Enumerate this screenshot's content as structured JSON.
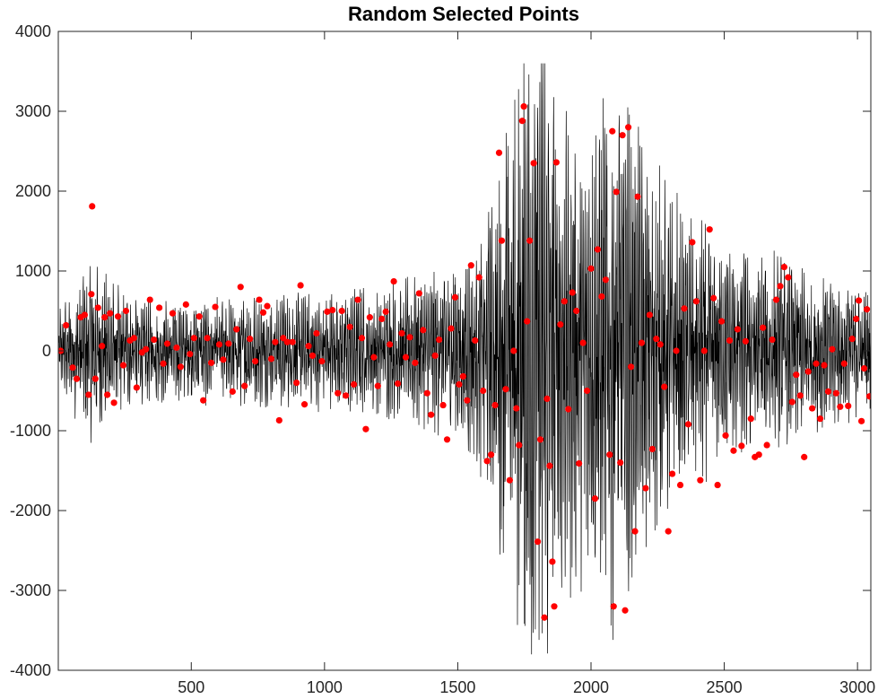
{
  "chart_data": {
    "type": "line",
    "title": "Random Selected Points",
    "xlabel": "",
    "ylabel": "",
    "xlim": [
      1,
      3050
    ],
    "ylim": [
      -4000,
      4000
    ],
    "x_ticks": [
      500,
      1000,
      1500,
      2000,
      2500,
      3000
    ],
    "y_ticks": [
      4000,
      3000,
      2000,
      1000,
      0,
      -1000,
      -2000,
      -3000,
      -4000
    ],
    "grid": false,
    "legend": "none",
    "series": [
      {
        "kind": "line",
        "color": "#000000",
        "n_samples": 3050,
        "envelope": [
          {
            "x": 1,
            "amp": 450
          },
          {
            "x": 120,
            "amp": 900
          },
          {
            "x": 300,
            "amp": 520
          },
          {
            "x": 800,
            "amp": 560
          },
          {
            "x": 1200,
            "amp": 650
          },
          {
            "x": 1450,
            "amp": 850
          },
          {
            "x": 1600,
            "amp": 1300
          },
          {
            "x": 1700,
            "amp": 2600
          },
          {
            "x": 1760,
            "amp": 3500
          },
          {
            "x": 1830,
            "amp": 3600
          },
          {
            "x": 1900,
            "amp": 2500
          },
          {
            "x": 2000,
            "amp": 2300
          },
          {
            "x": 2100,
            "amp": 3000
          },
          {
            "x": 2200,
            "amp": 2000
          },
          {
            "x": 2350,
            "amp": 1500
          },
          {
            "x": 2500,
            "amp": 1100
          },
          {
            "x": 2700,
            "amp": 1000
          },
          {
            "x": 2900,
            "amp": 800
          },
          {
            "x": 3050,
            "amp": 600
          }
        ]
      },
      {
        "kind": "scatter",
        "color": "#ff0000",
        "points": [
          [
            10,
            0
          ],
          [
            30,
            320
          ],
          [
            55,
            -210
          ],
          [
            70,
            -350
          ],
          [
            85,
            420
          ],
          [
            100,
            450
          ],
          [
            115,
            -550
          ],
          [
            125,
            710
          ],
          [
            128,
            1810
          ],
          [
            140,
            -350
          ],
          [
            150,
            540
          ],
          [
            165,
            60
          ],
          [
            175,
            420
          ],
          [
            185,
            -550
          ],
          [
            195,
            470
          ],
          [
            210,
            -650
          ],
          [
            225,
            430
          ],
          [
            245,
            -180
          ],
          [
            255,
            500
          ],
          [
            270,
            130
          ],
          [
            285,
            160
          ],
          [
            295,
            -460
          ],
          [
            315,
            -20
          ],
          [
            330,
            20
          ],
          [
            345,
            640
          ],
          [
            360,
            140
          ],
          [
            380,
            540
          ],
          [
            395,
            -160
          ],
          [
            410,
            90
          ],
          [
            430,
            470
          ],
          [
            445,
            40
          ],
          [
            460,
            -200
          ],
          [
            480,
            580
          ],
          [
            495,
            -40
          ],
          [
            510,
            160
          ],
          [
            530,
            430
          ],
          [
            545,
            -620
          ],
          [
            560,
            160
          ],
          [
            575,
            -150
          ],
          [
            590,
            550
          ],
          [
            605,
            80
          ],
          [
            620,
            -110
          ],
          [
            640,
            90
          ],
          [
            655,
            -510
          ],
          [
            670,
            270
          ],
          [
            685,
            800
          ],
          [
            700,
            -440
          ],
          [
            720,
            150
          ],
          [
            740,
            -130
          ],
          [
            755,
            640
          ],
          [
            770,
            480
          ],
          [
            785,
            560
          ],
          [
            800,
            -100
          ],
          [
            815,
            110
          ],
          [
            830,
            -870
          ],
          [
            845,
            160
          ],
          [
            860,
            110
          ],
          [
            880,
            110
          ],
          [
            895,
            -400
          ],
          [
            910,
            820
          ],
          [
            925,
            -670
          ],
          [
            940,
            60
          ],
          [
            955,
            -60
          ],
          [
            970,
            220
          ],
          [
            990,
            -130
          ],
          [
            1010,
            490
          ],
          [
            1030,
            510
          ],
          [
            1050,
            -530
          ],
          [
            1065,
            500
          ],
          [
            1080,
            -560
          ],
          [
            1095,
            300
          ],
          [
            1110,
            -420
          ],
          [
            1125,
            640
          ],
          [
            1140,
            160
          ],
          [
            1155,
            -980
          ],
          [
            1170,
            420
          ],
          [
            1185,
            -80
          ],
          [
            1200,
            -440
          ],
          [
            1215,
            400
          ],
          [
            1230,
            490
          ],
          [
            1245,
            80
          ],
          [
            1260,
            870
          ],
          [
            1275,
            -410
          ],
          [
            1290,
            220
          ],
          [
            1305,
            -80
          ],
          [
            1320,
            170
          ],
          [
            1340,
            -150
          ],
          [
            1355,
            720
          ],
          [
            1370,
            260
          ],
          [
            1385,
            -530
          ],
          [
            1400,
            -800
          ],
          [
            1415,
            -60
          ],
          [
            1430,
            140
          ],
          [
            1445,
            -680
          ],
          [
            1460,
            -1110
          ],
          [
            1475,
            280
          ],
          [
            1490,
            670
          ],
          [
            1505,
            -420
          ],
          [
            1520,
            -320
          ],
          [
            1535,
            -620
          ],
          [
            1550,
            1070
          ],
          [
            1565,
            130
          ],
          [
            1580,
            920
          ],
          [
            1595,
            -500
          ],
          [
            1610,
            -1380
          ],
          [
            1625,
            -1300
          ],
          [
            1640,
            -680
          ],
          [
            1655,
            2480
          ],
          [
            1665,
            1380
          ],
          [
            1680,
            -480
          ],
          [
            1695,
            -1620
          ],
          [
            1710,
            0
          ],
          [
            1720,
            -720
          ],
          [
            1730,
            -1180
          ],
          [
            1742,
            2880
          ],
          [
            1748,
            3060
          ],
          [
            1760,
            370
          ],
          [
            1770,
            1380
          ],
          [
            1785,
            2350
          ],
          [
            1800,
            -2390
          ],
          [
            1810,
            -1110
          ],
          [
            1825,
            -3340
          ],
          [
            1835,
            -600
          ],
          [
            1845,
            -1440
          ],
          [
            1855,
            -2640
          ],
          [
            1862,
            -3200
          ],
          [
            1870,
            2360
          ],
          [
            1885,
            330
          ],
          [
            1900,
            620
          ],
          [
            1915,
            -730
          ],
          [
            1930,
            730
          ],
          [
            1945,
            500
          ],
          [
            1955,
            -1410
          ],
          [
            1970,
            100
          ],
          [
            1985,
            -500
          ],
          [
            2000,
            1030
          ],
          [
            2015,
            -1850
          ],
          [
            2025,
            1270
          ],
          [
            2040,
            680
          ],
          [
            2055,
            890
          ],
          [
            2070,
            -1300
          ],
          [
            2080,
            2750
          ],
          [
            2085,
            -3200
          ],
          [
            2095,
            1990
          ],
          [
            2110,
            -1400
          ],
          [
            2118,
            2700
          ],
          [
            2128,
            -3250
          ],
          [
            2140,
            2800
          ],
          [
            2150,
            -200
          ],
          [
            2165,
            -2260
          ],
          [
            2175,
            1930
          ],
          [
            2190,
            100
          ],
          [
            2205,
            -1720
          ],
          [
            2220,
            450
          ],
          [
            2230,
            -1230
          ],
          [
            2245,
            150
          ],
          [
            2260,
            80
          ],
          [
            2275,
            -450
          ],
          [
            2290,
            -2260
          ],
          [
            2305,
            -1540
          ],
          [
            2320,
            0
          ],
          [
            2335,
            -1680
          ],
          [
            2350,
            530
          ],
          [
            2365,
            -920
          ],
          [
            2380,
            1360
          ],
          [
            2395,
            620
          ],
          [
            2410,
            -1620
          ],
          [
            2425,
            0
          ],
          [
            2445,
            1520
          ],
          [
            2460,
            660
          ],
          [
            2475,
            -1680
          ],
          [
            2490,
            370
          ],
          [
            2505,
            -1060
          ],
          [
            2520,
            130
          ],
          [
            2535,
            -1250
          ],
          [
            2550,
            270
          ],
          [
            2565,
            -1190
          ],
          [
            2580,
            120
          ],
          [
            2600,
            -850
          ],
          [
            2615,
            -1330
          ],
          [
            2630,
            -1300
          ],
          [
            2645,
            290
          ],
          [
            2660,
            -1180
          ],
          [
            2680,
            140
          ],
          [
            2695,
            640
          ],
          [
            2710,
            810
          ],
          [
            2725,
            1050
          ],
          [
            2740,
            920
          ],
          [
            2755,
            -640
          ],
          [
            2770,
            -300
          ],
          [
            2785,
            -560
          ],
          [
            2800,
            -1330
          ],
          [
            2815,
            -260
          ],
          [
            2830,
            -720
          ],
          [
            2845,
            -160
          ],
          [
            2860,
            -850
          ],
          [
            2875,
            -180
          ],
          [
            2890,
            -510
          ],
          [
            2905,
            20
          ],
          [
            2920,
            -530
          ],
          [
            2935,
            -700
          ],
          [
            2950,
            -160
          ],
          [
            2965,
            -690
          ],
          [
            2980,
            150
          ],
          [
            2995,
            400
          ],
          [
            3005,
            630
          ],
          [
            3015,
            -880
          ],
          [
            3025,
            -220
          ],
          [
            3035,
            520
          ],
          [
            3045,
            -570
          ]
        ]
      }
    ]
  }
}
